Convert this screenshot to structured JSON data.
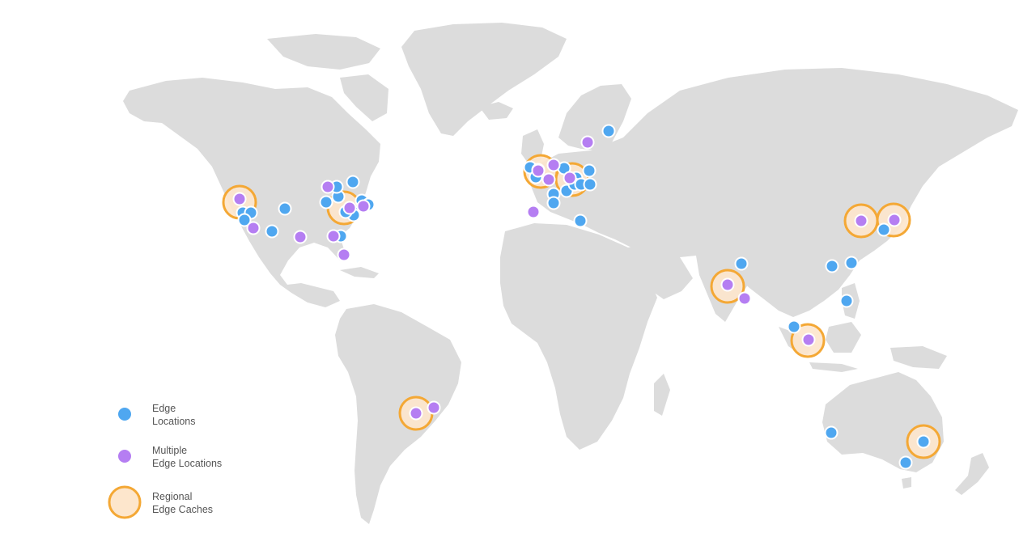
{
  "map": {
    "title": "",
    "colors": {
      "land": "#dcdcdc",
      "edge": "#4fa7f0",
      "multi": "#b57ef2",
      "cache_fill": "#fde6cc",
      "cache_stroke": "#f4a835",
      "marker_outline": "#ffffff"
    }
  },
  "legend": {
    "items": [
      {
        "type": "edge",
        "label": "Edge\nLocations"
      },
      {
        "type": "multi",
        "label": "Multiple\nEdge Locations"
      },
      {
        "type": "cache",
        "label": "Regional\nEdge Caches"
      }
    ]
  },
  "locations": {
    "edge_count": 38,
    "multiple_edge_count": 21,
    "regional_cache_count": 11
  }
}
